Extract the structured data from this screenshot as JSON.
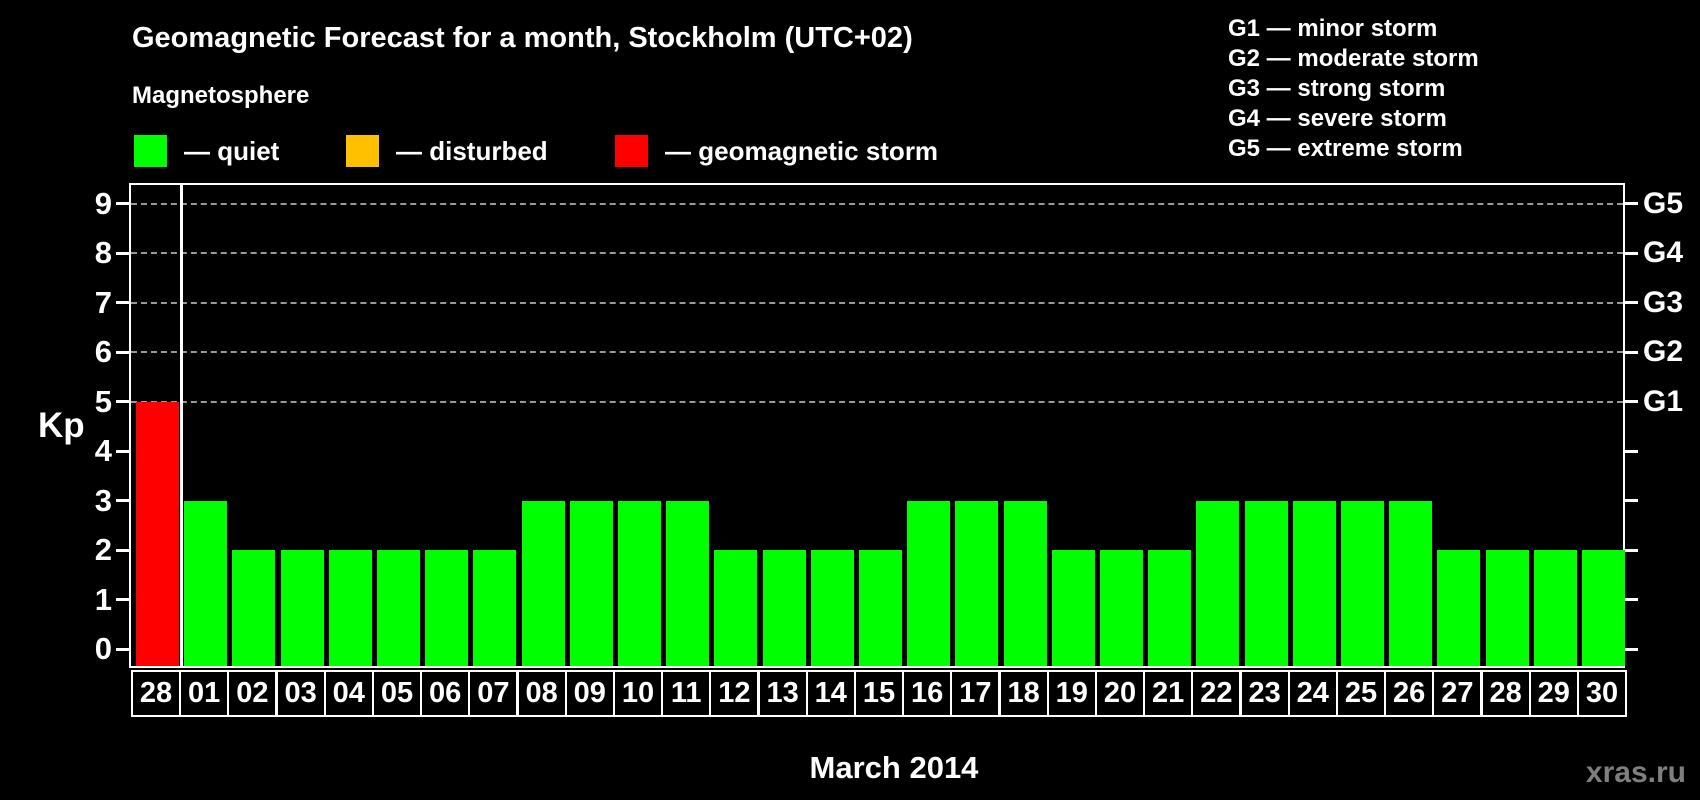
{
  "title": "Geomagnetic Forecast for a month, Stockholm (UTC+02)",
  "subtitle": "Magnetosphere",
  "legend": [
    {
      "key": "quiet",
      "label": "— quiet",
      "color": "#00ff00"
    },
    {
      "key": "disturbed",
      "label": "— disturbed",
      "color": "#ffc000"
    },
    {
      "key": "storm",
      "label": "— geomagnetic storm",
      "color": "#ff0000"
    }
  ],
  "g_scale_legend": [
    "G1 — minor storm",
    "G2 — moderate storm",
    "G3 — strong storm",
    "G4 — severe storm",
    "G5 — extreme storm"
  ],
  "axes": {
    "kp_label": "Kp",
    "kp_ticks": [
      0,
      1,
      2,
      3,
      4,
      5,
      6,
      7,
      8,
      9
    ],
    "g_labels": [
      {
        "kp": 5,
        "text": "G1"
      },
      {
        "kp": 6,
        "text": "G2"
      },
      {
        "kp": 7,
        "text": "G3"
      },
      {
        "kp": 8,
        "text": "G4"
      },
      {
        "kp": 9,
        "text": "G5"
      }
    ],
    "month_label": "March 2014"
  },
  "watermark": "xras.ru",
  "colors": {
    "background": "#000000",
    "text": "#ffffff",
    "quiet": "#00ff00",
    "disturbed": "#ffc000",
    "storm": "#ff0000",
    "grid": "#999999",
    "watermark": "#7f7f7f"
  },
  "chart_data": {
    "type": "bar",
    "title": "Geomagnetic Forecast for a month, Stockholm (UTC+02)",
    "xlabel": "March 2014",
    "ylabel": "Kp",
    "ylim": [
      0,
      9
    ],
    "gridlines_at_kp": [
      5,
      6,
      7,
      8,
      9
    ],
    "grid": "dashed, only at storm levels G1-G5",
    "legend_position": "top-left",
    "categories": [
      "28",
      "01",
      "02",
      "03",
      "04",
      "05",
      "06",
      "07",
      "08",
      "09",
      "10",
      "11",
      "12",
      "13",
      "14",
      "15",
      "16",
      "17",
      "18",
      "19",
      "20",
      "21",
      "22",
      "23",
      "24",
      "25",
      "26",
      "27",
      "28",
      "29",
      "30"
    ],
    "values": [
      5,
      3,
      2,
      2,
      2,
      2,
      2,
      2,
      3,
      3,
      3,
      3,
      2,
      2,
      2,
      2,
      3,
      3,
      3,
      2,
      2,
      2,
      3,
      3,
      3,
      3,
      3,
      2,
      2,
      2,
      2
    ],
    "statuses": [
      "storm",
      "quiet",
      "quiet",
      "quiet",
      "quiet",
      "quiet",
      "quiet",
      "quiet",
      "quiet",
      "quiet",
      "quiet",
      "quiet",
      "quiet",
      "quiet",
      "quiet",
      "quiet",
      "quiet",
      "quiet",
      "quiet",
      "quiet",
      "quiet",
      "quiet",
      "quiet",
      "quiet",
      "quiet",
      "quiet",
      "quiet",
      "quiet",
      "quiet",
      "quiet",
      "quiet"
    ],
    "prev_month_separator_after_index": 0
  }
}
